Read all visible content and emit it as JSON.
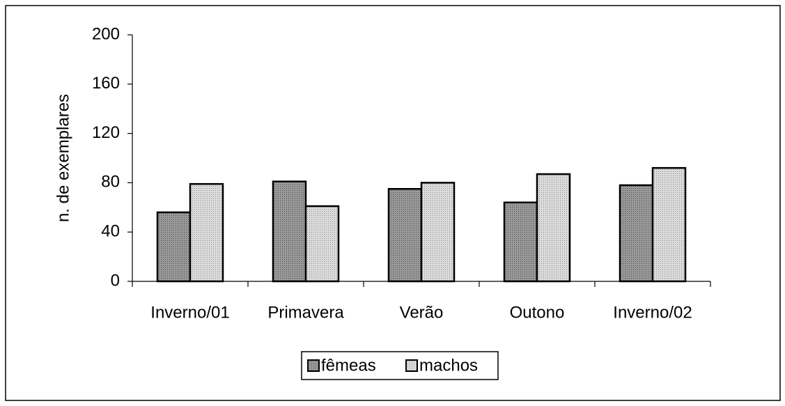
{
  "chart_data": {
    "type": "bar",
    "y_label": "n. de exemplares",
    "categories": [
      "Inverno/01",
      "Primavera",
      "Verão",
      "Outono",
      "Inverno/02"
    ],
    "series": [
      {
        "name": "fêmeas",
        "color": "#9a9a9a",
        "values": [
          56,
          81,
          75,
          64,
          78
        ]
      },
      {
        "name": "machos",
        "color": "#dcdcdc",
        "values": [
          79,
          61,
          80,
          87,
          92
        ]
      }
    ],
    "ylim": [
      0,
      200
    ],
    "yticks": [
      0,
      40,
      80,
      120,
      160,
      200
    ],
    "legend": "bottom"
  }
}
